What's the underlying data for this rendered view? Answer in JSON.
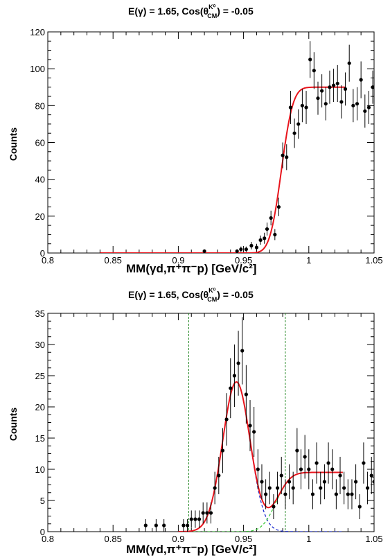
{
  "chart_data": [
    {
      "type": "scatter",
      "title": "E(γ) = 1.65, Cos(θ",
      "title_sup": "K⁰",
      "title_sub": "CM",
      "title_tail": ") = -0.05",
      "xlabel": "MM(γd,π⁺π⁻p) [GeV/c²]",
      "ylabel": "Counts",
      "xlim": [
        0.8,
        1.05
      ],
      "ylim": [
        0,
        120
      ],
      "xticks": [
        "0.8",
        "0.85",
        "0.9",
        "0.95",
        "1",
        "1.05"
      ],
      "yticks": [
        "0",
        "20",
        "40",
        "60",
        "80",
        "100",
        "120"
      ],
      "points": [
        [
          0.92,
          1,
          1
        ],
        [
          0.945,
          1,
          1
        ],
        [
          0.948,
          2,
          1.5
        ],
        [
          0.952,
          2,
          1.5
        ],
        [
          0.956,
          4,
          2
        ],
        [
          0.96,
          3,
          2
        ],
        [
          0.963,
          7,
          2.5
        ],
        [
          0.966,
          8,
          3
        ],
        [
          0.968,
          13,
          3.5
        ],
        [
          0.971,
          19,
          4
        ],
        [
          0.974,
          10,
          3
        ],
        [
          0.977,
          25,
          5
        ],
        [
          0.98,
          53,
          7
        ],
        [
          0.983,
          52,
          7
        ],
        [
          0.986,
          79,
          9
        ],
        [
          0.989,
          65,
          8
        ],
        [
          0.992,
          70,
          8
        ],
        [
          0.995,
          80,
          9
        ],
        [
          0.998,
          79,
          9
        ],
        [
          1.001,
          105,
          10
        ],
        [
          1.004,
          99,
          10
        ],
        [
          1.007,
          84,
          9
        ],
        [
          1.01,
          88,
          9
        ],
        [
          1.013,
          81,
          9
        ],
        [
          1.016,
          90,
          9
        ],
        [
          1.019,
          91,
          9
        ],
        [
          1.022,
          92,
          10
        ],
        [
          1.025,
          82,
          9
        ],
        [
          1.028,
          89,
          9
        ],
        [
          1.031,
          103,
          10
        ],
        [
          1.034,
          80,
          9
        ],
        [
          1.037,
          81,
          9
        ],
        [
          1.04,
          94,
          10
        ],
        [
          1.043,
          77,
          9
        ],
        [
          1.046,
          79,
          9
        ],
        [
          1.049,
          90,
          9
        ]
      ],
      "fit": {
        "color": "#e8141c",
        "model": "erf_step",
        "amplitude": 90,
        "center": 0.979,
        "width": 0.007,
        "xrange": [
          0.84,
          1.028
        ]
      }
    },
    {
      "type": "scatter",
      "title": "E(γ) = 1.65, Cos(θ",
      "title_sup": "K⁰",
      "title_sub": "CM",
      "title_tail": ") = -0.05",
      "xlabel": "MM(γd,π⁺π⁻p) [GeV/c²]",
      "ylabel": "Counts",
      "xlim": [
        0.8,
        1.05
      ],
      "ylim": [
        0,
        35
      ],
      "xticks": [
        "0.8",
        "0.85",
        "0.9",
        "0.95",
        "1",
        "1.05"
      ],
      "yticks": [
        "0",
        "5",
        "10",
        "15",
        "20",
        "25",
        "30",
        "35"
      ],
      "points": [
        [
          0.875,
          1,
          1
        ],
        [
          0.883,
          1,
          1
        ],
        [
          0.889,
          1,
          1
        ],
        [
          0.904,
          1,
          1
        ],
        [
          0.907,
          1,
          1
        ],
        [
          0.91,
          2,
          1.4
        ],
        [
          0.913,
          2,
          1.4
        ],
        [
          0.916,
          2,
          1.4
        ],
        [
          0.919,
          3,
          1.7
        ],
        [
          0.922,
          3,
          1.7
        ],
        [
          0.925,
          3,
          1.7
        ],
        [
          0.928,
          7,
          2.6
        ],
        [
          0.931,
          9,
          3
        ],
        [
          0.934,
          13,
          3.6
        ],
        [
          0.937,
          18,
          4.2
        ],
        [
          0.94,
          23,
          4.8
        ],
        [
          0.943,
          25,
          5
        ],
        [
          0.946,
          27,
          5.2
        ],
        [
          0.949,
          29,
          5.4
        ],
        [
          0.952,
          22,
          4.7
        ],
        [
          0.955,
          17,
          4.1
        ],
        [
          0.958,
          16,
          4
        ],
        [
          0.961,
          10,
          3.2
        ],
        [
          0.964,
          8,
          2.8
        ],
        [
          0.967,
          6,
          2.4
        ],
        [
          0.97,
          7,
          2.6
        ],
        [
          0.973,
          4,
          2
        ],
        [
          0.976,
          7,
          2.6
        ],
        [
          0.979,
          9,
          3
        ],
        [
          0.982,
          6,
          2.4
        ],
        [
          0.985,
          8,
          2.8
        ],
        [
          0.988,
          7,
          2.6
        ],
        [
          0.991,
          13,
          3.6
        ],
        [
          0.994,
          10,
          3.2
        ],
        [
          0.997,
          12,
          3.5
        ],
        [
          1.0,
          10,
          3.2
        ],
        [
          1.003,
          6,
          2.4
        ],
        [
          1.006,
          11,
          3.3
        ],
        [
          1.009,
          7,
          2.6
        ],
        [
          1.012,
          8,
          2.8
        ],
        [
          1.015,
          11,
          3.3
        ],
        [
          1.018,
          10,
          3.2
        ],
        [
          1.021,
          6,
          2.4
        ],
        [
          1.024,
          9,
          3
        ],
        [
          1.027,
          7,
          2.6
        ],
        [
          1.03,
          6,
          2.4
        ],
        [
          1.033,
          6,
          2.4
        ],
        [
          1.036,
          8,
          2.8
        ],
        [
          1.039,
          4,
          2
        ],
        [
          1.042,
          11,
          3.3
        ],
        [
          1.045,
          7,
          2.6
        ],
        [
          1.048,
          9,
          3
        ],
        [
          1.05,
          8,
          2.8
        ]
      ],
      "cut_lines": {
        "color": "#2a8a2a",
        "x": [
          0.908,
          0.982
        ]
      },
      "fits": [
        {
          "name": "total",
          "color": "#e8141c",
          "model": "gauss_plus_step"
        },
        {
          "name": "signal",
          "color": "#1a2ad0",
          "model": "gauss",
          "dashed": true
        },
        {
          "name": "background",
          "color": "#3ac83a",
          "model": "step",
          "dashed": true
        }
      ],
      "fit_params": {
        "gauss_amp": 24,
        "gauss_mu": 0.9445,
        "gauss_sigma": 0.0105,
        "step_amp": 9.5,
        "step_center": 0.975,
        "step_width": 0.0085,
        "xrange": [
          0.9,
          1.026
        ]
      }
    }
  ]
}
